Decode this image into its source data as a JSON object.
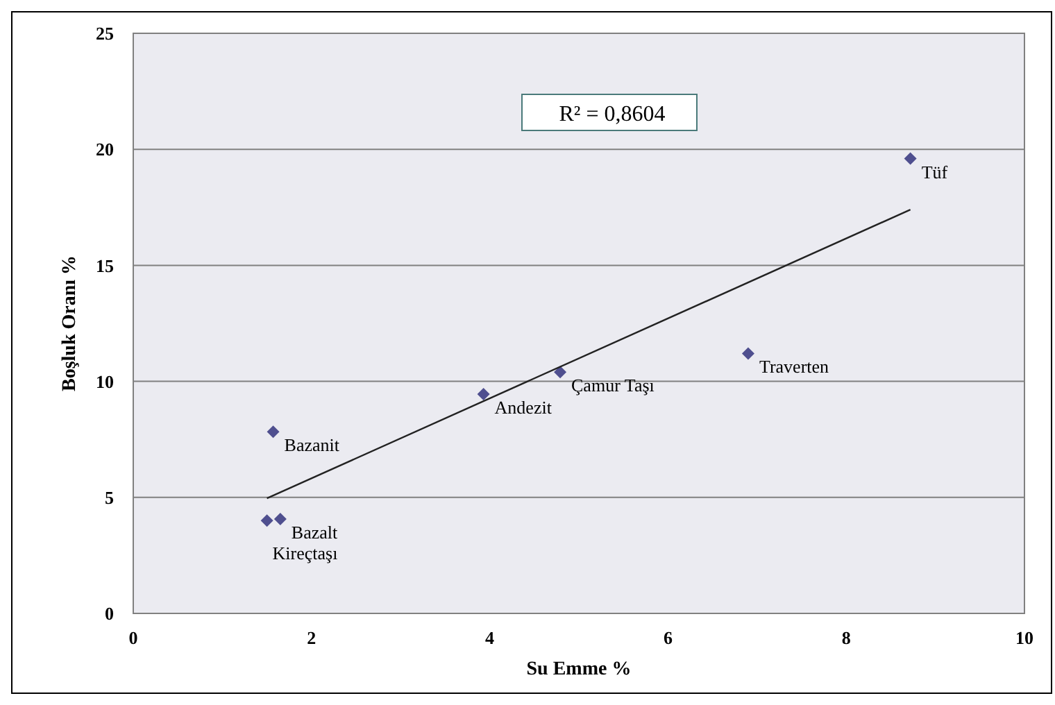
{
  "chart_data": {
    "type": "scatter",
    "xlabel": "Su Emme %",
    "ylabel": "Boşluk Oranı %",
    "xlim": [
      0,
      10
    ],
    "ylim": [
      0,
      25
    ],
    "xticks": [
      0,
      2,
      4,
      6,
      8,
      10
    ],
    "yticks": [
      0,
      5,
      10,
      15,
      20,
      25
    ],
    "grid": "y",
    "series": [
      {
        "color": "#4f4f8f",
        "marker": "diamond",
        "x": [
          8.72,
          6.9,
          4.79,
          3.93,
          1.57,
          1.65,
          1.5
        ],
        "values": [
          19.6,
          11.2,
          10.4,
          9.45,
          7.83,
          4.07,
          4.0
        ]
      },
      {
        "type": "line",
        "marker": "none",
        "color": "#222222",
        "x": [
          1.5,
          8.72
        ],
        "values": [
          4.96,
          17.4
        ]
      }
    ],
    "annotations": [
      "R² = 0,8604",
      {
        "text": "Tüf",
        "x": 8.72,
        "y": 19.6
      },
      {
        "text": "Traverten",
        "x": 6.9,
        "y": 11.2
      },
      {
        "text": "Çamur Taşı",
        "x": 4.79,
        "y": 10.4
      },
      {
        "text": "Andezit",
        "x": 3.93,
        "y": 9.45
      },
      {
        "text": "Bazanit",
        "x": 1.57,
        "y": 7.83
      },
      {
        "text": "Bazalt",
        "x": 1.65,
        "y": 4.07
      },
      {
        "text": "Kireçtaşı",
        "x": 1.5,
        "y": 4.0
      }
    ]
  }
}
